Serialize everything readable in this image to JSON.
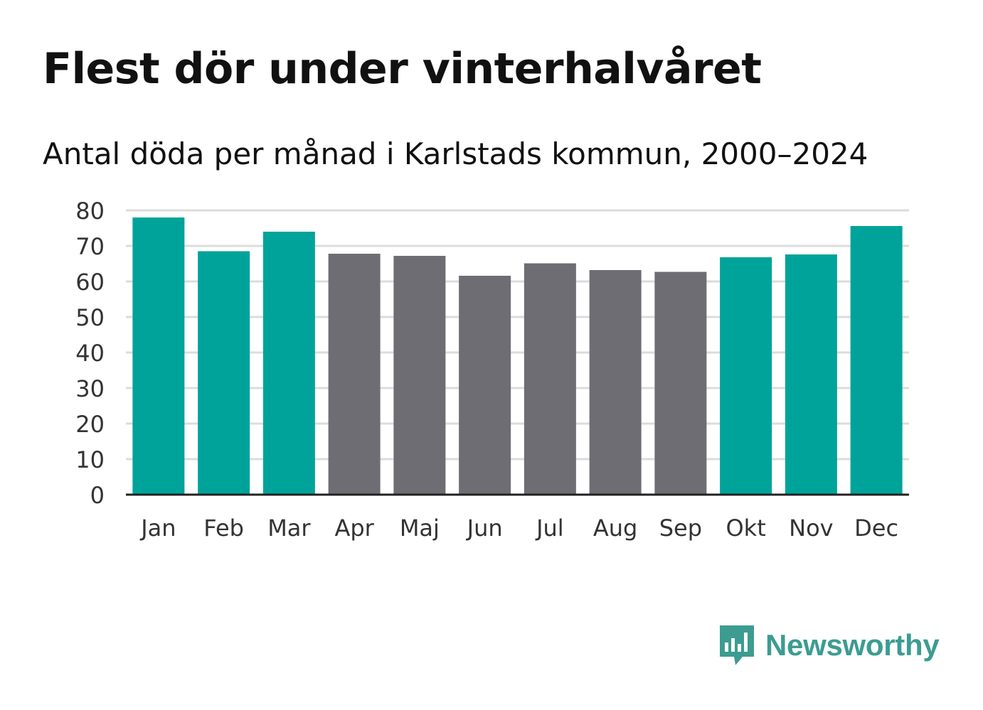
{
  "chart_data": {
    "type": "bar",
    "title": "Flest dör under vinterhalvåret",
    "subtitle": "Antal döda per månad i Karlstads kommun, 2000–2024",
    "categories": [
      "Jan",
      "Feb",
      "Mar",
      "Apr",
      "Maj",
      "Jun",
      "Jul",
      "Aug",
      "Sep",
      "Okt",
      "Nov",
      "Dec"
    ],
    "values": [
      78,
      68.5,
      74,
      67.8,
      67.2,
      61.6,
      65.1,
      63.2,
      62.7,
      66.8,
      67.6,
      75.6
    ],
    "highlight": [
      true,
      true,
      true,
      false,
      false,
      false,
      false,
      false,
      false,
      true,
      true,
      true
    ],
    "ylim": [
      0,
      80
    ],
    "yticks": [
      0,
      10,
      20,
      30,
      40,
      50,
      60,
      70,
      80
    ],
    "xlabel": "",
    "ylabel": "",
    "grid": true,
    "colors": {
      "highlight": "#00a39a",
      "base": "#6e6d73",
      "grid": "#dcdcdc",
      "axis": "#222222"
    }
  },
  "brand": {
    "name": "Newsworthy",
    "color": "#3c9c92",
    "icon": "bar-chart-speech-bubble-icon"
  }
}
